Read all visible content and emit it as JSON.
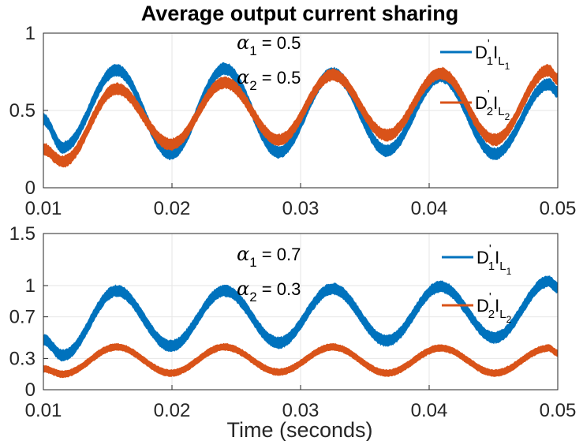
{
  "chart_data": [
    {
      "type": "line",
      "title": "Average output current sharing",
      "xlabel": "",
      "ylabel": "",
      "xlim": [
        0.01,
        0.05
      ],
      "ylim": [
        0,
        1
      ],
      "xticks": [
        0.01,
        0.02,
        0.03,
        0.04,
        0.05
      ],
      "xtick_labels": [
        "0.01",
        "0.02",
        "0.03",
        "0.04",
        "0.05"
      ],
      "yticks": [
        0,
        0.5,
        1
      ],
      "ytick_labels": [
        "0",
        "0.5",
        "1"
      ],
      "grid": true,
      "annotations": [
        {
          "symbol": "α",
          "sub": "1",
          "text": " = 0.5"
        },
        {
          "symbol": "α",
          "sub": "2",
          "text": " = 0.5"
        }
      ],
      "legend": {
        "placement": "top-right",
        "entries": [
          {
            "base": "D",
            "prime": "'",
            "sub": "1",
            "mid": "I",
            "sub2": "L",
            "sub3": "1",
            "color": "#0072BD"
          },
          {
            "base": "D",
            "prime": "'",
            "sub": "2",
            "mid": "I",
            "sub2": "L",
            "sub3": "2",
            "color": "#D95319"
          }
        ]
      },
      "series": [
        {
          "name": "D'1 IL1",
          "color": "#0072BD",
          "x": [
            0.01,
            0.0115,
            0.0157,
            0.0199,
            0.0241,
            0.0283,
            0.0325,
            0.0367,
            0.0409,
            0.0451,
            0.0493,
            0.05
          ],
          "values": [
            0.44,
            0.26,
            0.76,
            0.22,
            0.77,
            0.23,
            0.74,
            0.24,
            0.72,
            0.22,
            0.67,
            0.62
          ],
          "band_width": 0.07
        },
        {
          "name": "D'2 IL2",
          "color": "#D95319",
          "x": [
            0.01,
            0.0115,
            0.0157,
            0.0199,
            0.0241,
            0.0283,
            0.0325,
            0.0367,
            0.0409,
            0.0451,
            0.0493,
            0.05
          ],
          "values": [
            0.25,
            0.17,
            0.64,
            0.28,
            0.68,
            0.31,
            0.73,
            0.34,
            0.74,
            0.31,
            0.76,
            0.7
          ],
          "band_width": 0.07
        }
      ]
    },
    {
      "type": "line",
      "title": "",
      "xlabel": "Time (seconds)",
      "ylabel": "",
      "xlim": [
        0.01,
        0.05
      ],
      "ylim": [
        0,
        1.5
      ],
      "xticks": [
        0.01,
        0.02,
        0.03,
        0.04,
        0.05
      ],
      "xtick_labels": [
        "0.01",
        "0.02",
        "0.03",
        "0.04",
        "0.05"
      ],
      "yticks": [
        0,
        0.3,
        0.7,
        1,
        1.5
      ],
      "ytick_labels": [
        "0",
        "0.3",
        "0.7",
        "1",
        "1.5"
      ],
      "grid": true,
      "annotations": [
        {
          "symbol": "α",
          "sub": "1",
          "text": " = 0.7"
        },
        {
          "symbol": "α",
          "sub": "2",
          "text": " = 0.3"
        }
      ],
      "legend": {
        "placement": "top-right",
        "entries": [
          {
            "base": "D",
            "prime": "'",
            "sub": "1",
            "mid": "I",
            "sub2": "L",
            "sub3": "1",
            "color": "#0072BD"
          },
          {
            "base": "D",
            "prime": "'",
            "sub": "2",
            "mid": "I",
            "sub2": "L",
            "sub3": "2",
            "color": "#D95319"
          }
        ]
      },
      "series": [
        {
          "name": "D'1 IL1",
          "color": "#0072BD",
          "x": [
            0.01,
            0.0115,
            0.0157,
            0.0199,
            0.0241,
            0.0283,
            0.0325,
            0.0367,
            0.0409,
            0.0451,
            0.0493,
            0.05
          ],
          "values": [
            0.48,
            0.33,
            0.95,
            0.42,
            0.95,
            0.45,
            0.97,
            0.47,
            0.99,
            0.5,
            1.04,
            0.98
          ],
          "band_width": 0.1
        },
        {
          "name": "D'2 IL2",
          "color": "#D95319",
          "x": [
            0.01,
            0.0115,
            0.0157,
            0.0199,
            0.0241,
            0.0283,
            0.0325,
            0.0367,
            0.0409,
            0.0451,
            0.0493,
            0.05
          ],
          "values": [
            0.2,
            0.15,
            0.41,
            0.16,
            0.41,
            0.17,
            0.41,
            0.16,
            0.4,
            0.16,
            0.4,
            0.35
          ],
          "band_width": 0.06
        }
      ]
    }
  ]
}
